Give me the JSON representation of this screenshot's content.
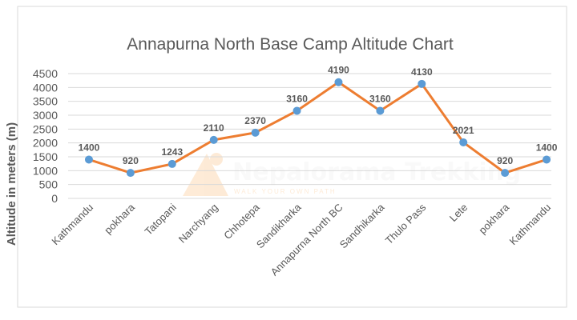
{
  "chart_data": {
    "type": "line",
    "title": "Annapurna North Base Camp Altitude Chart",
    "xlabel": "",
    "ylabel": "Altitude in meters (m)",
    "ylim": [
      0,
      4500
    ],
    "yticks": [
      0,
      500,
      1000,
      1500,
      2000,
      2500,
      3000,
      3500,
      4000,
      4500
    ],
    "grid": true,
    "legend": "none",
    "categories": [
      "Kathmandu",
      "pokhara",
      "Tatopani",
      "Narchyang",
      "Chhotepa",
      "Sandikharka",
      "Annapurna North BC",
      "Sandhikarka",
      "Thulo Pass",
      "Lete",
      "pokhara",
      "Kathmandu"
    ],
    "series": [
      {
        "name": "Altitude",
        "values": [
          1400,
          920,
          1243,
          2110,
          2370,
          3160,
          4190,
          3160,
          4130,
          2021,
          920,
          1400
        ],
        "line_color": "#ED7D31",
        "marker_color": "#5B9BD5"
      }
    ]
  },
  "watermark": {
    "name": "Nepalorama Trekking",
    "tagline": "WALK YOUR OWN PATH"
  }
}
